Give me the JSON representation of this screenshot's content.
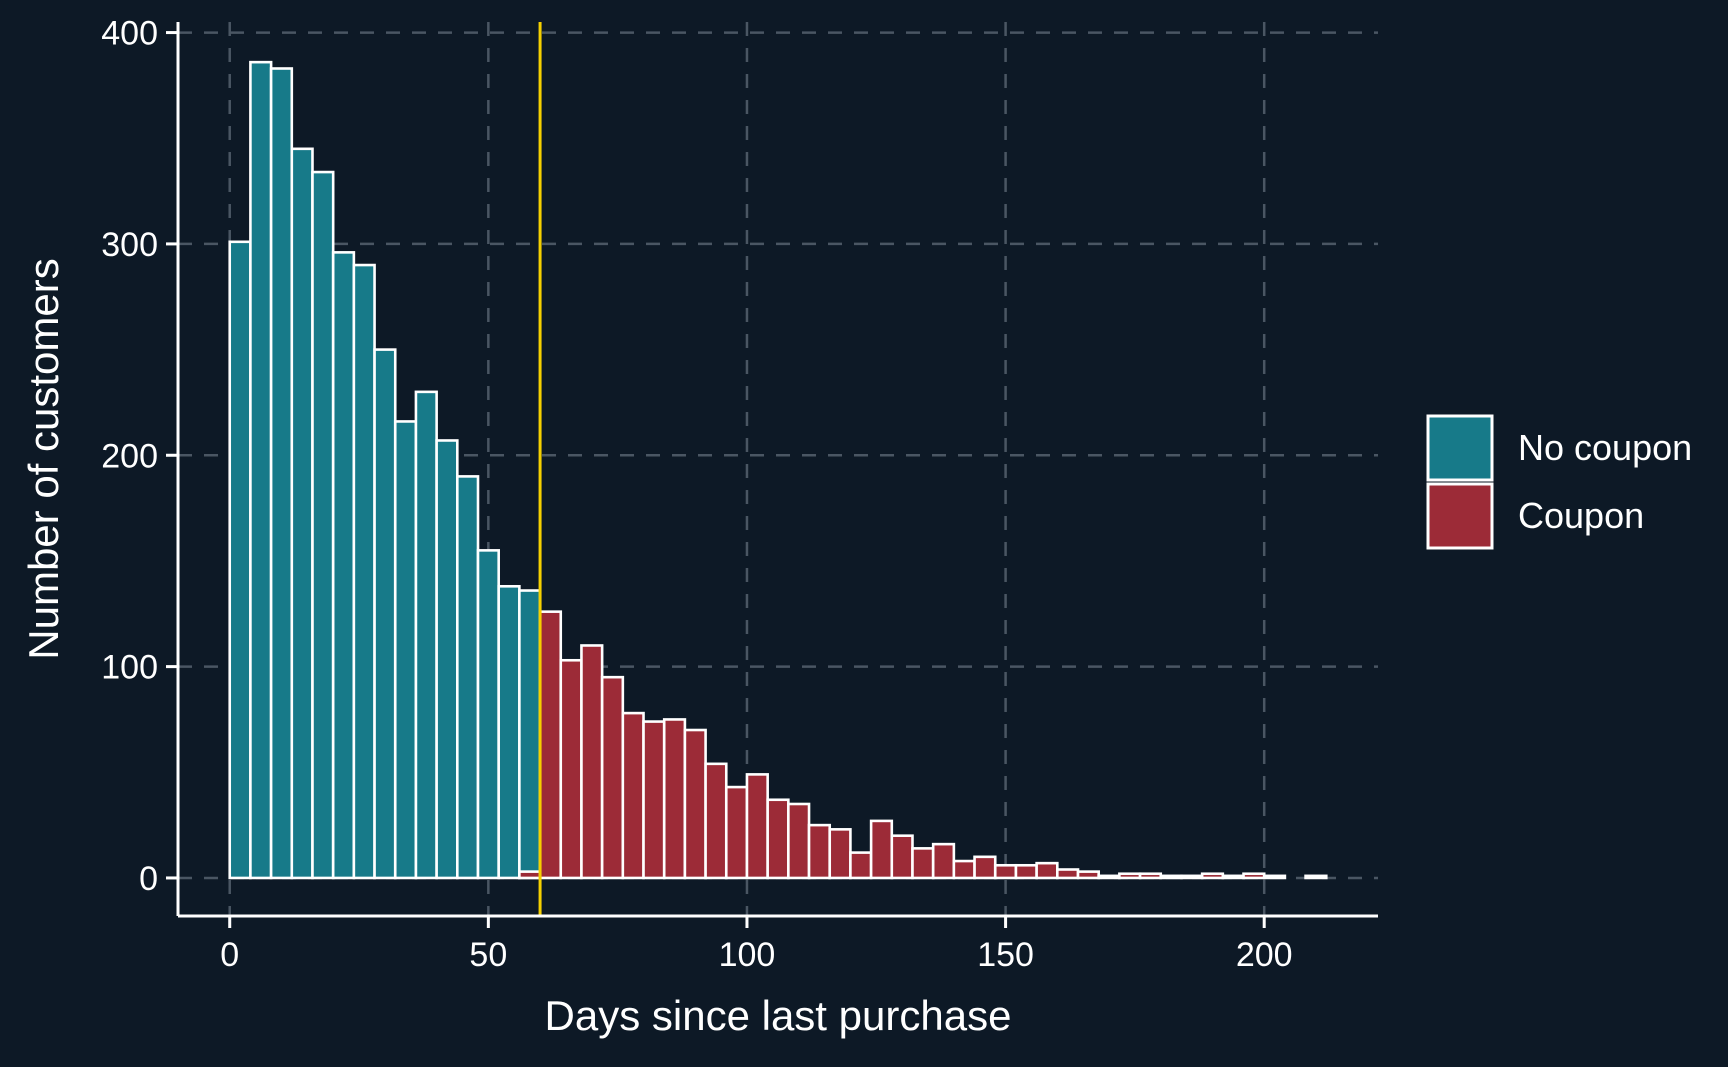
{
  "chart_data": {
    "type": "bar",
    "title": "",
    "xlabel": "Days since last purchase",
    "ylabel": "Number of customers",
    "xlim": [
      -10,
      222
    ],
    "ylim": [
      -18,
      405
    ],
    "x_ticks": [
      0,
      50,
      100,
      150,
      200
    ],
    "y_ticks": [
      0,
      100,
      200,
      300,
      400
    ],
    "grid": true,
    "threshold": 60,
    "threshold_color": "#f5d000",
    "legend_position": "right",
    "series": [
      {
        "name": "No coupon",
        "color": "#177a89",
        "x_start": [
          0,
          4,
          8,
          12,
          16,
          20,
          24,
          28,
          32,
          36,
          40,
          44,
          48,
          52,
          56
        ],
        "x_end": [
          4,
          8,
          12,
          16,
          20,
          24,
          28,
          32,
          36,
          40,
          44,
          48,
          52,
          56,
          60
        ],
        "values": [
          301,
          386,
          383,
          345,
          334,
          296,
          290,
          250,
          216,
          230,
          207,
          190,
          155,
          138,
          136
        ]
      },
      {
        "name": "Coupon",
        "color": "#9c2b37",
        "x_start": [
          56,
          60,
          64,
          68,
          72,
          76,
          80,
          84,
          88,
          92,
          96,
          100,
          104,
          108,
          112,
          116,
          120,
          124,
          128,
          132,
          136,
          140,
          144,
          148,
          152,
          156,
          160,
          164,
          168,
          172,
          176,
          180,
          184,
          188,
          192,
          196,
          200,
          204,
          208
        ],
        "x_end": [
          60,
          64,
          68,
          72,
          76,
          80,
          84,
          88,
          92,
          96,
          100,
          104,
          108,
          112,
          116,
          120,
          124,
          128,
          132,
          136,
          140,
          144,
          148,
          152,
          156,
          160,
          164,
          168,
          172,
          176,
          180,
          184,
          188,
          192,
          196,
          200,
          204,
          208,
          212
        ],
        "values": [
          3,
          126,
          103,
          110,
          95,
          78,
          74,
          75,
          70,
          54,
          43,
          49,
          37,
          35,
          25,
          23,
          12,
          27,
          20,
          14,
          16,
          8,
          10,
          6,
          6,
          7,
          4,
          3,
          1,
          2,
          2,
          1,
          1,
          2,
          1,
          2,
          1,
          0,
          1
        ]
      }
    ]
  }
}
